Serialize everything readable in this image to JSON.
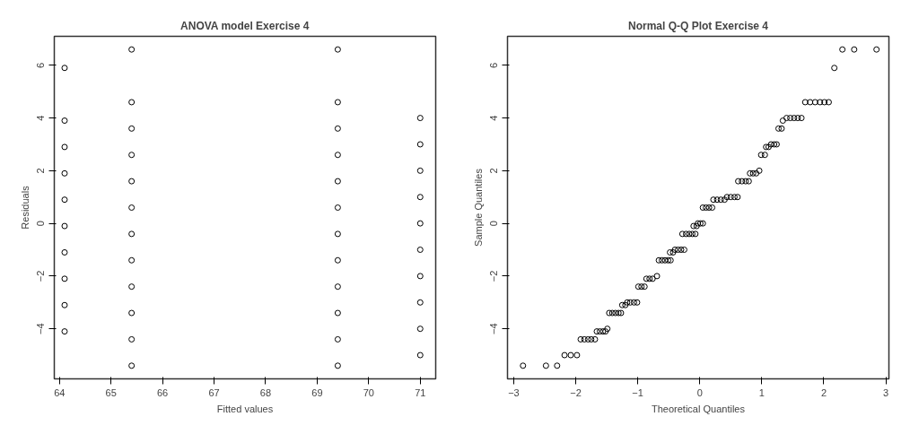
{
  "chart_data": [
    {
      "type": "scatter",
      "title": "ANOVA model Exercise 4",
      "xlabel": "Fitted values",
      "ylabel": "Residuals",
      "marker": "circle",
      "grid": false,
      "xlim": [
        63.9,
        71.3
      ],
      "ylim": [
        -5.9,
        7.1
      ],
      "xticks": [
        64,
        65,
        66,
        67,
        68,
        69,
        70,
        71
      ],
      "yticks": [
        -4,
        -2,
        0,
        2,
        4,
        6
      ],
      "series": [
        {
          "color": "#000000",
          "x": [
            64.1,
            64.1,
            64.1,
            64.1,
            64.1,
            64.1,
            64.1,
            64.1,
            64.1,
            64.1,
            65.4,
            65.4,
            65.4,
            65.4,
            65.4,
            65.4,
            65.4,
            65.4,
            65.4,
            65.4,
            65.4,
            65.4,
            69.4,
            69.4,
            69.4,
            69.4,
            69.4,
            69.4,
            69.4,
            69.4,
            69.4,
            69.4,
            69.4,
            69.4,
            71,
            71,
            71,
            71,
            71,
            71,
            71,
            71,
            71,
            71
          ],
          "values": [
            5.9,
            3.9,
            2.9,
            1.9,
            0.9,
            -0.1,
            -1.1,
            -2.1,
            -3.1,
            -4.1,
            6.6,
            4.6,
            3.6,
            2.6,
            1.6,
            0.6,
            -0.4,
            -1.4,
            -2.4,
            -3.4,
            -4.4,
            -5.4,
            6.6,
            4.6,
            3.6,
            2.6,
            1.6,
            0.6,
            -0.4,
            -1.4,
            -2.4,
            -3.4,
            -4.4,
            -5.4,
            4,
            3,
            2,
            1,
            0,
            -1,
            -2,
            -3,
            -4,
            -5
          ]
        }
      ]
    },
    {
      "type": "scatter",
      "title": "Normal Q-Q Plot Exercise 4",
      "xlabel": "Theoretical Quantiles",
      "ylabel": "Sample Quantiles",
      "marker": "circle",
      "grid": false,
      "xlim": [
        -3.1,
        3.05
      ],
      "ylim": [
        -5.9,
        7.1
      ],
      "xticks": [
        -3,
        -2,
        -1,
        0,
        1,
        2,
        3
      ],
      "yticks": [
        -4,
        -2,
        0,
        2,
        4,
        6
      ],
      "series": [
        {
          "color": "#000000",
          "x": [
            -2.85,
            -2.48,
            -2.3,
            -2.18,
            -2.08,
            -1.98,
            -1.92,
            -1.86,
            -1.8,
            -1.75,
            -1.69,
            -1.66,
            -1.61,
            -1.56,
            -1.52,
            -1.49,
            -1.46,
            -1.41,
            -1.36,
            -1.31,
            -1.27,
            -1.25,
            -1.2,
            -1.17,
            -1.12,
            -1.06,
            -1.01,
            -0.99,
            -0.94,
            -0.89,
            -0.86,
            -0.81,
            -0.76,
            -0.69,
            -0.66,
            -0.61,
            -0.56,
            -0.51,
            -0.47,
            -0.48,
            -0.43,
            -0.4,
            -0.35,
            -0.3,
            -0.25,
            -0.28,
            -0.22,
            -0.17,
            -0.12,
            -0.07,
            -0.1,
            -0.05,
            -0.03,
            0.01,
            0.05,
            0.05,
            0.1,
            0.15,
            0.2,
            0.22,
            0.28,
            0.34,
            0.4,
            0.44,
            0.5,
            0.56,
            0.61,
            0.62,
            0.68,
            0.74,
            0.79,
            0.81,
            0.86,
            0.91,
            0.96,
            0.99,
            1.05,
            1.07,
            1.11,
            1.15,
            1.2,
            1.24,
            1.27,
            1.32,
            1.34,
            1.4,
            1.46,
            1.52,
            1.58,
            1.64,
            1.7,
            1.78,
            1.86,
            1.94,
            2.01,
            2.08,
            2.17,
            2.3,
            2.49,
            2.85
          ],
          "values": [
            -5.4,
            -5.4,
            -5.4,
            -5,
            -5,
            -5,
            -4.4,
            -4.4,
            -4.4,
            -4.4,
            -4.4,
            -4.1,
            -4.1,
            -4.1,
            -4.1,
            -4,
            -3.4,
            -3.4,
            -3.4,
            -3.4,
            -3.4,
            -3.1,
            -3.1,
            -3,
            -3,
            -3,
            -3,
            -2.4,
            -2.4,
            -2.4,
            -2.1,
            -2.1,
            -2.1,
            -2,
            -1.4,
            -1.4,
            -1.4,
            -1.4,
            -1.4,
            -1.1,
            -1.1,
            -1,
            -1,
            -1,
            -1,
            -0.4,
            -0.4,
            -0.4,
            -0.4,
            -0.4,
            -0.1,
            -0.1,
            0,
            0,
            0,
            0.6,
            0.6,
            0.6,
            0.6,
            0.9,
            0.9,
            0.9,
            0.9,
            1,
            1,
            1,
            1,
            1.6,
            1.6,
            1.6,
            1.6,
            1.9,
            1.9,
            1.9,
            2,
            2.6,
            2.6,
            2.9,
            2.9,
            3,
            3,
            3,
            3.6,
            3.6,
            3.9,
            4,
            4,
            4,
            4,
            4,
            4.6,
            4.6,
            4.6,
            4.6,
            4.6,
            4.6,
            5.9,
            6.6,
            6.6,
            6.6
          ]
        }
      ]
    }
  ]
}
